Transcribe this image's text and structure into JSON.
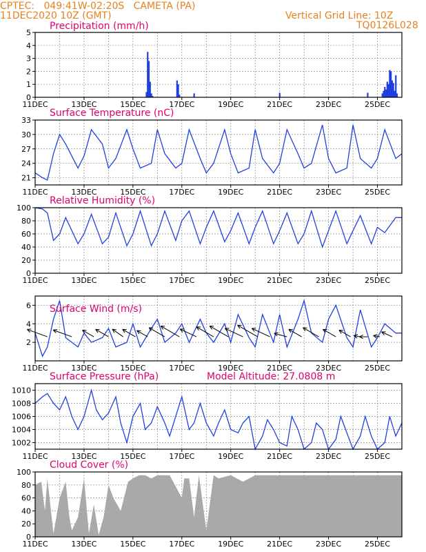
{
  "header": {
    "line1": "CPTEC:   049:41W-02:20S   CAMETA (PA)",
    "line2": "11DEC2020 10Z (GMT)",
    "grid_note": "Vertical Grid Line: 10Z",
    "code": "TQ0126L028",
    "model_altitude": "Model Altitude: 27.0808 m"
  },
  "colors": {
    "header": "#e8801c",
    "title": "#e0006e",
    "series": "#1f3fe0",
    "cloud": "#a9a9a9",
    "grid": "#8c8c8c",
    "vector": "#000000"
  },
  "x_ticks": [
    "11DEC",
    "13DEC",
    "15DEC",
    "17DEC",
    "19DEC",
    "21DEC",
    "23DEC",
    "25DEC"
  ],
  "x_range_days": [
    0,
    15
  ],
  "chart_data": [
    {
      "type": "bar",
      "title": "Precipitation (mm/h)",
      "ylim": [
        0,
        5
      ],
      "y_ticks": [
        0,
        1,
        2,
        3,
        4,
        5
      ],
      "x": [
        4.55,
        4.6,
        4.65,
        4.7,
        4.75,
        4.8,
        5.8,
        5.85,
        5.9,
        6.5,
        10.0,
        13.6,
        14.2,
        14.25,
        14.3,
        14.35,
        14.4,
        14.45,
        14.5,
        14.55,
        14.6,
        14.65,
        14.7,
        14.75,
        14.8
      ],
      "values": [
        0.4,
        3.5,
        2.8,
        1.2,
        0.3,
        0.1,
        1.3,
        1.0,
        0.2,
        0.3,
        0.35,
        0.35,
        0.3,
        0.5,
        0.8,
        0.6,
        1.2,
        1.0,
        2.1,
        2.0,
        1.3,
        1.1,
        0.5,
        1.7,
        0.3
      ]
    },
    {
      "type": "line",
      "title": "Surface Temperature (nC)",
      "ylim": [
        19.5,
        33
      ],
      "y_ticks": [
        21,
        24,
        27,
        30,
        33
      ],
      "x": [
        0,
        0.3,
        0.5,
        0.75,
        1.0,
        1.25,
        1.75,
        2.0,
        2.3,
        2.75,
        3.0,
        3.3,
        3.75,
        4.0,
        4.3,
        4.75,
        5.0,
        5.3,
        5.75,
        6.0,
        6.3,
        6.75,
        7.0,
        7.3,
        7.75,
        8.0,
        8.3,
        8.75,
        9.0,
        9.3,
        9.75,
        10.0,
        10.3,
        10.75,
        11.0,
        11.3,
        11.75,
        12.0,
        12.3,
        12.75,
        13.0,
        13.3,
        13.75,
        14.0,
        14.3,
        14.75,
        15.0
      ],
      "values": [
        22,
        21,
        20.5,
        26,
        30,
        28,
        23,
        25.5,
        31,
        28,
        23,
        25,
        31,
        27,
        23,
        24,
        31,
        26,
        23,
        24,
        31,
        25,
        22,
        24,
        31,
        26,
        22,
        23,
        31,
        25,
        22,
        24,
        31,
        26,
        23,
        24,
        32,
        25,
        22,
        23,
        32,
        25,
        23,
        25,
        31,
        25,
        26
      ]
    },
    {
      "type": "line",
      "title": "Relative Humidity (%)",
      "ylim": [
        0,
        100
      ],
      "y_ticks": [
        0,
        20,
        40,
        60,
        80,
        100
      ],
      "x": [
        0,
        0.3,
        0.5,
        0.75,
        1.0,
        1.25,
        1.75,
        2.0,
        2.3,
        2.75,
        3.0,
        3.3,
        3.75,
        4.0,
        4.3,
        4.75,
        5.0,
        5.3,
        5.75,
        6.0,
        6.3,
        6.75,
        7.0,
        7.3,
        7.75,
        8.0,
        8.3,
        8.75,
        9.0,
        9.3,
        9.75,
        10.0,
        10.3,
        10.75,
        11.0,
        11.3,
        11.75,
        12.0,
        12.3,
        12.75,
        13.0,
        13.3,
        13.75,
        14.0,
        14.3,
        14.75,
        15.0
      ],
      "values": [
        100,
        98,
        92,
        50,
        60,
        85,
        45,
        60,
        90,
        45,
        55,
        92,
        42,
        60,
        95,
        42,
        60,
        95,
        50,
        80,
        95,
        45,
        70,
        95,
        48,
        65,
        92,
        45,
        70,
        95,
        45,
        65,
        92,
        45,
        60,
        95,
        40,
        65,
        95,
        45,
        65,
        88,
        45,
        70,
        62,
        85,
        85
      ]
    },
    {
      "type": "line",
      "title": "Surface Wind (m/s)",
      "ylim": [
        0,
        7
      ],
      "y_ticks": [
        2,
        4,
        6
      ],
      "x": [
        0,
        0.3,
        0.5,
        0.75,
        1.0,
        1.25,
        1.75,
        2.0,
        2.3,
        2.75,
        3.0,
        3.3,
        3.75,
        4.0,
        4.3,
        4.75,
        5.0,
        5.3,
        5.75,
        6.0,
        6.3,
        6.75,
        7.0,
        7.3,
        7.75,
        8.0,
        8.3,
        8.75,
        9.0,
        9.3,
        9.75,
        10.0,
        10.3,
        10.75,
        11.0,
        11.3,
        11.75,
        12.0,
        12.3,
        12.75,
        13.0,
        13.3,
        13.75,
        14.0,
        14.3,
        14.75,
        15.0
      ],
      "values": [
        3,
        0.5,
        1.5,
        4.5,
        6.5,
        2.5,
        1.5,
        3,
        2,
        2.5,
        3.5,
        1.5,
        2,
        4,
        1.5,
        3.5,
        4.5,
        2,
        3,
        4,
        2,
        4.5,
        3,
        2,
        4,
        2,
        5,
        2.5,
        1.5,
        5,
        2,
        5,
        1.5,
        4.5,
        6.5,
        3,
        2,
        4.5,
        6,
        2.5,
        1.5,
        5.5,
        1.5,
        2.5,
        4,
        3,
        3
      ],
      "vectors_x": [
        0.5,
        1.5,
        2.4,
        3.0,
        3.6,
        4.1,
        4.6,
        5.3,
        5.9,
        6.6,
        7.3,
        7.9,
        8.5,
        9.1,
        9.6,
        10.3,
        10.9,
        11.6,
        12.3,
        12.9,
        13.3,
        13.6,
        14.1,
        14.6
      ],
      "vectors_speed": [
        2.6,
        2.4,
        1.6,
        1.8,
        1.6,
        1.8,
        1.5,
        2.2,
        2.6,
        2.2,
        2.4,
        2.6,
        2.4,
        2.8,
        2.4,
        1.6,
        1.8,
        2.2,
        1.8,
        1.6,
        0.8,
        1.0,
        0.8,
        1.4
      ],
      "vectors_dir_deg": [
        160,
        160,
        150,
        150,
        145,
        150,
        150,
        150,
        150,
        155,
        150,
        150,
        155,
        150,
        155,
        165,
        150,
        150,
        150,
        150,
        170,
        180,
        170,
        155
      ]
    },
    {
      "type": "line",
      "title": "Surface Pressure (hPa)",
      "ylim": [
        1001,
        1011
      ],
      "y_ticks": [
        1002,
        1004,
        1006,
        1008,
        1010
      ],
      "x": [
        0,
        0.3,
        0.5,
        0.75,
        1.0,
        1.25,
        1.5,
        1.75,
        2.0,
        2.3,
        2.5,
        2.75,
        3.0,
        3.3,
        3.5,
        3.75,
        4.0,
        4.3,
        4.5,
        4.75,
        5.0,
        5.3,
        5.5,
        5.75,
        6.0,
        6.3,
        6.5,
        6.75,
        7.0,
        7.3,
        7.5,
        7.75,
        8.0,
        8.3,
        8.5,
        8.75,
        9.0,
        9.3,
        9.5,
        9.75,
        10.0,
        10.3,
        10.5,
        10.75,
        11.0,
        11.3,
        11.5,
        11.75,
        12.0,
        12.3,
        12.5,
        12.75,
        13.0,
        13.3,
        13.5,
        13.75,
        14.0,
        14.3,
        14.5,
        14.75,
        15.0
      ],
      "values": [
        1008,
        1009,
        1009.5,
        1008,
        1007,
        1009,
        1006,
        1004,
        1006,
        1010,
        1007,
        1005.5,
        1006.5,
        1009,
        1005,
        1002,
        1006,
        1008,
        1004,
        1005,
        1007.5,
        1005,
        1003,
        1006,
        1009,
        1004,
        1005,
        1008,
        1005,
        1003,
        1005,
        1007,
        1004,
        1003.5,
        1005,
        1006,
        1001,
        1003,
        1005.5,
        1004,
        1002,
        1001.5,
        1006,
        1004,
        1001,
        1002,
        1005,
        1004,
        1001,
        1002.5,
        1006,
        1003.5,
        1001,
        1003,
        1006,
        1003,
        1001,
        1002,
        1006,
        1003,
        1005
      ]
    },
    {
      "type": "area",
      "title": "Cloud Cover (%)",
      "ylim": [
        0,
        100
      ],
      "y_ticks": [
        0,
        20,
        40,
        60,
        80,
        100
      ],
      "x": [
        0,
        0.25,
        0.4,
        0.5,
        0.75,
        1.0,
        1.25,
        1.4,
        1.5,
        1.75,
        2.0,
        2.2,
        2.4,
        2.6,
        2.8,
        3.0,
        3.2,
        3.5,
        3.8,
        4.0,
        4.25,
        4.5,
        4.75,
        5.0,
        5.5,
        6.0,
        6.1,
        6.3,
        6.5,
        6.7,
        7.0,
        7.3,
        7.5,
        8.0,
        8.5,
        9.0,
        9.5,
        10.0,
        11.0,
        12.0,
        13.0,
        14.0,
        15.0
      ],
      "values": [
        80,
        85,
        40,
        90,
        5,
        60,
        85,
        30,
        10,
        30,
        90,
        5,
        50,
        3,
        30,
        80,
        60,
        40,
        85,
        90,
        95,
        95,
        90,
        95,
        95,
        60,
        90,
        90,
        30,
        95,
        10,
        95,
        90,
        95,
        85,
        95,
        95,
        95,
        95,
        95,
        95,
        95,
        95
      ]
    }
  ]
}
